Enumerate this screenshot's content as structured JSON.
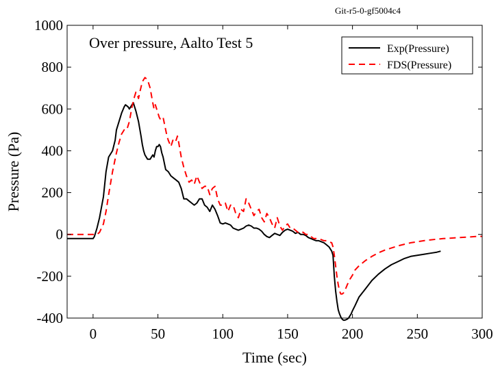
{
  "header": {
    "version_label": "Git-r5-0-gf5004c4"
  },
  "chart_data": {
    "type": "line",
    "title": "Over pressure, Aalto Test 5",
    "xlabel": "Time (sec)",
    "ylabel": "Pressure (Pa)",
    "xlim": [
      -20,
      300
    ],
    "ylim": [
      -400,
      1000
    ],
    "xticks": [
      0,
      50,
      100,
      150,
      200,
      250,
      300
    ],
    "yticks": [
      -400,
      -200,
      0,
      200,
      400,
      600,
      800,
      1000
    ],
    "grid": false,
    "legend_position": "top-right",
    "series": [
      {
        "name": "Exp(Pressure)",
        "color": "#000000",
        "dash": "solid",
        "x": [
          -20,
          0,
          1,
          3,
          5,
          8,
          10,
          12,
          14,
          15,
          17,
          18,
          20,
          22,
          24,
          25,
          27,
          28,
          30,
          31,
          32,
          33,
          35,
          37,
          38,
          39,
          40,
          42,
          44,
          46,
          47,
          48,
          49,
          50,
          51,
          52,
          53,
          54,
          55,
          56,
          58,
          60,
          62,
          64,
          66,
          68,
          70,
          72,
          74,
          76,
          78,
          80,
          82,
          84,
          86,
          88,
          90,
          92,
          94,
          96,
          98,
          100,
          102,
          104,
          106,
          108,
          110,
          112,
          114,
          116,
          118,
          120,
          122,
          124,
          126,
          128,
          130,
          132,
          134,
          136,
          138,
          140,
          142,
          144,
          146,
          148,
          150,
          152,
          154,
          156,
          158,
          160,
          162,
          164,
          166,
          168,
          170,
          172,
          174,
          176,
          178,
          180,
          182,
          184,
          185,
          186,
          187,
          188,
          189,
          190,
          191,
          192,
          193,
          194,
          195,
          196,
          197,
          198,
          199,
          200,
          202,
          205,
          210,
          215,
          220,
          225,
          230,
          235,
          240,
          245,
          250,
          255,
          260,
          265,
          268
        ],
        "y": [
          -20,
          -20,
          -10,
          30,
          80,
          180,
          300,
          370,
          390,
          400,
          450,
          500,
          540,
          580,
          610,
          620,
          610,
          600,
          620,
          630,
          610,
          590,
          540,
          470,
          430,
          400,
          380,
          360,
          360,
          380,
          370,
          400,
          420,
          420,
          430,
          420,
          390,
          370,
          340,
          310,
          300,
          280,
          270,
          260,
          250,
          220,
          170,
          170,
          160,
          150,
          140,
          150,
          170,
          170,
          140,
          130,
          110,
          140,
          120,
          90,
          55,
          50,
          55,
          50,
          45,
          30,
          25,
          20,
          25,
          30,
          40,
          45,
          40,
          30,
          30,
          25,
          15,
          0,
          -10,
          -15,
          -5,
          5,
          0,
          -5,
          10,
          20,
          25,
          20,
          15,
          5,
          10,
          0,
          0,
          -5,
          -15,
          -20,
          -25,
          -30,
          -30,
          -35,
          -40,
          -50,
          -60,
          -80,
          -100,
          -200,
          -270,
          -320,
          -360,
          -380,
          -395,
          -405,
          -410,
          -410,
          -408,
          -405,
          -400,
          -390,
          -380,
          -365,
          -340,
          -300,
          -260,
          -220,
          -190,
          -165,
          -145,
          -130,
          -115,
          -105,
          -100,
          -95,
          -90,
          -85,
          -80
        ]
      },
      {
        "name": "FDS(Pressure)",
        "color": "#ff0000",
        "dash": "dashed",
        "x": [
          -20,
          0,
          3,
          5,
          8,
          10,
          12,
          15,
          18,
          20,
          22,
          24,
          26,
          28,
          30,
          32,
          33,
          34,
          35,
          36,
          38,
          40,
          42,
          44,
          46,
          47,
          48,
          50,
          51,
          52,
          54,
          56,
          57,
          58,
          60,
          62,
          64,
          65,
          66,
          68,
          70,
          72,
          74,
          76,
          78,
          80,
          82,
          84,
          86,
          88,
          90,
          92,
          94,
          96,
          98,
          100,
          102,
          104,
          106,
          108,
          110,
          112,
          114,
          116,
          118,
          120,
          122,
          124,
          126,
          128,
          130,
          132,
          134,
          136,
          138,
          140,
          142,
          144,
          146,
          148,
          150,
          152,
          154,
          156,
          158,
          160,
          162,
          164,
          166,
          168,
          170,
          172,
          174,
          176,
          178,
          180,
          182,
          184,
          185,
          186,
          187,
          188,
          189,
          190,
          191,
          192,
          193,
          194,
          195,
          196,
          198,
          200,
          202,
          205,
          210,
          215,
          220,
          225,
          230,
          235,
          240,
          245,
          250,
          255,
          260,
          265,
          270,
          275,
          280,
          285,
          290,
          295,
          300
        ],
        "y": [
          0,
          0,
          0,
          10,
          50,
          110,
          190,
          300,
          390,
          440,
          480,
          500,
          500,
          540,
          610,
          660,
          680,
          670,
          650,
          680,
          730,
          750,
          740,
          700,
          630,
          600,
          620,
          580,
          560,
          550,
          560,
          500,
          470,
          450,
          420,
          460,
          450,
          470,
          440,
          370,
          320,
          280,
          250,
          260,
          240,
          280,
          250,
          220,
          230,
          230,
          190,
          220,
          230,
          170,
          140,
          140,
          150,
          110,
          140,
          140,
          100,
          80,
          120,
          110,
          170,
          150,
          120,
          90,
          110,
          120,
          80,
          60,
          100,
          80,
          50,
          30,
          80,
          40,
          20,
          40,
          50,
          30,
          30,
          20,
          10,
          15,
          10,
          0,
          0,
          -10,
          -20,
          -20,
          -20,
          -25,
          -30,
          -30,
          -35,
          -40,
          -60,
          -100,
          -150,
          -200,
          -240,
          -270,
          -285,
          -285,
          -280,
          -270,
          -255,
          -240,
          -215,
          -195,
          -170,
          -150,
          -125,
          -105,
          -88,
          -75,
          -65,
          -55,
          -47,
          -40,
          -35,
          -30,
          -26,
          -23,
          -20,
          -18,
          -16,
          -14,
          -12,
          -10,
          -9
        ]
      }
    ]
  }
}
